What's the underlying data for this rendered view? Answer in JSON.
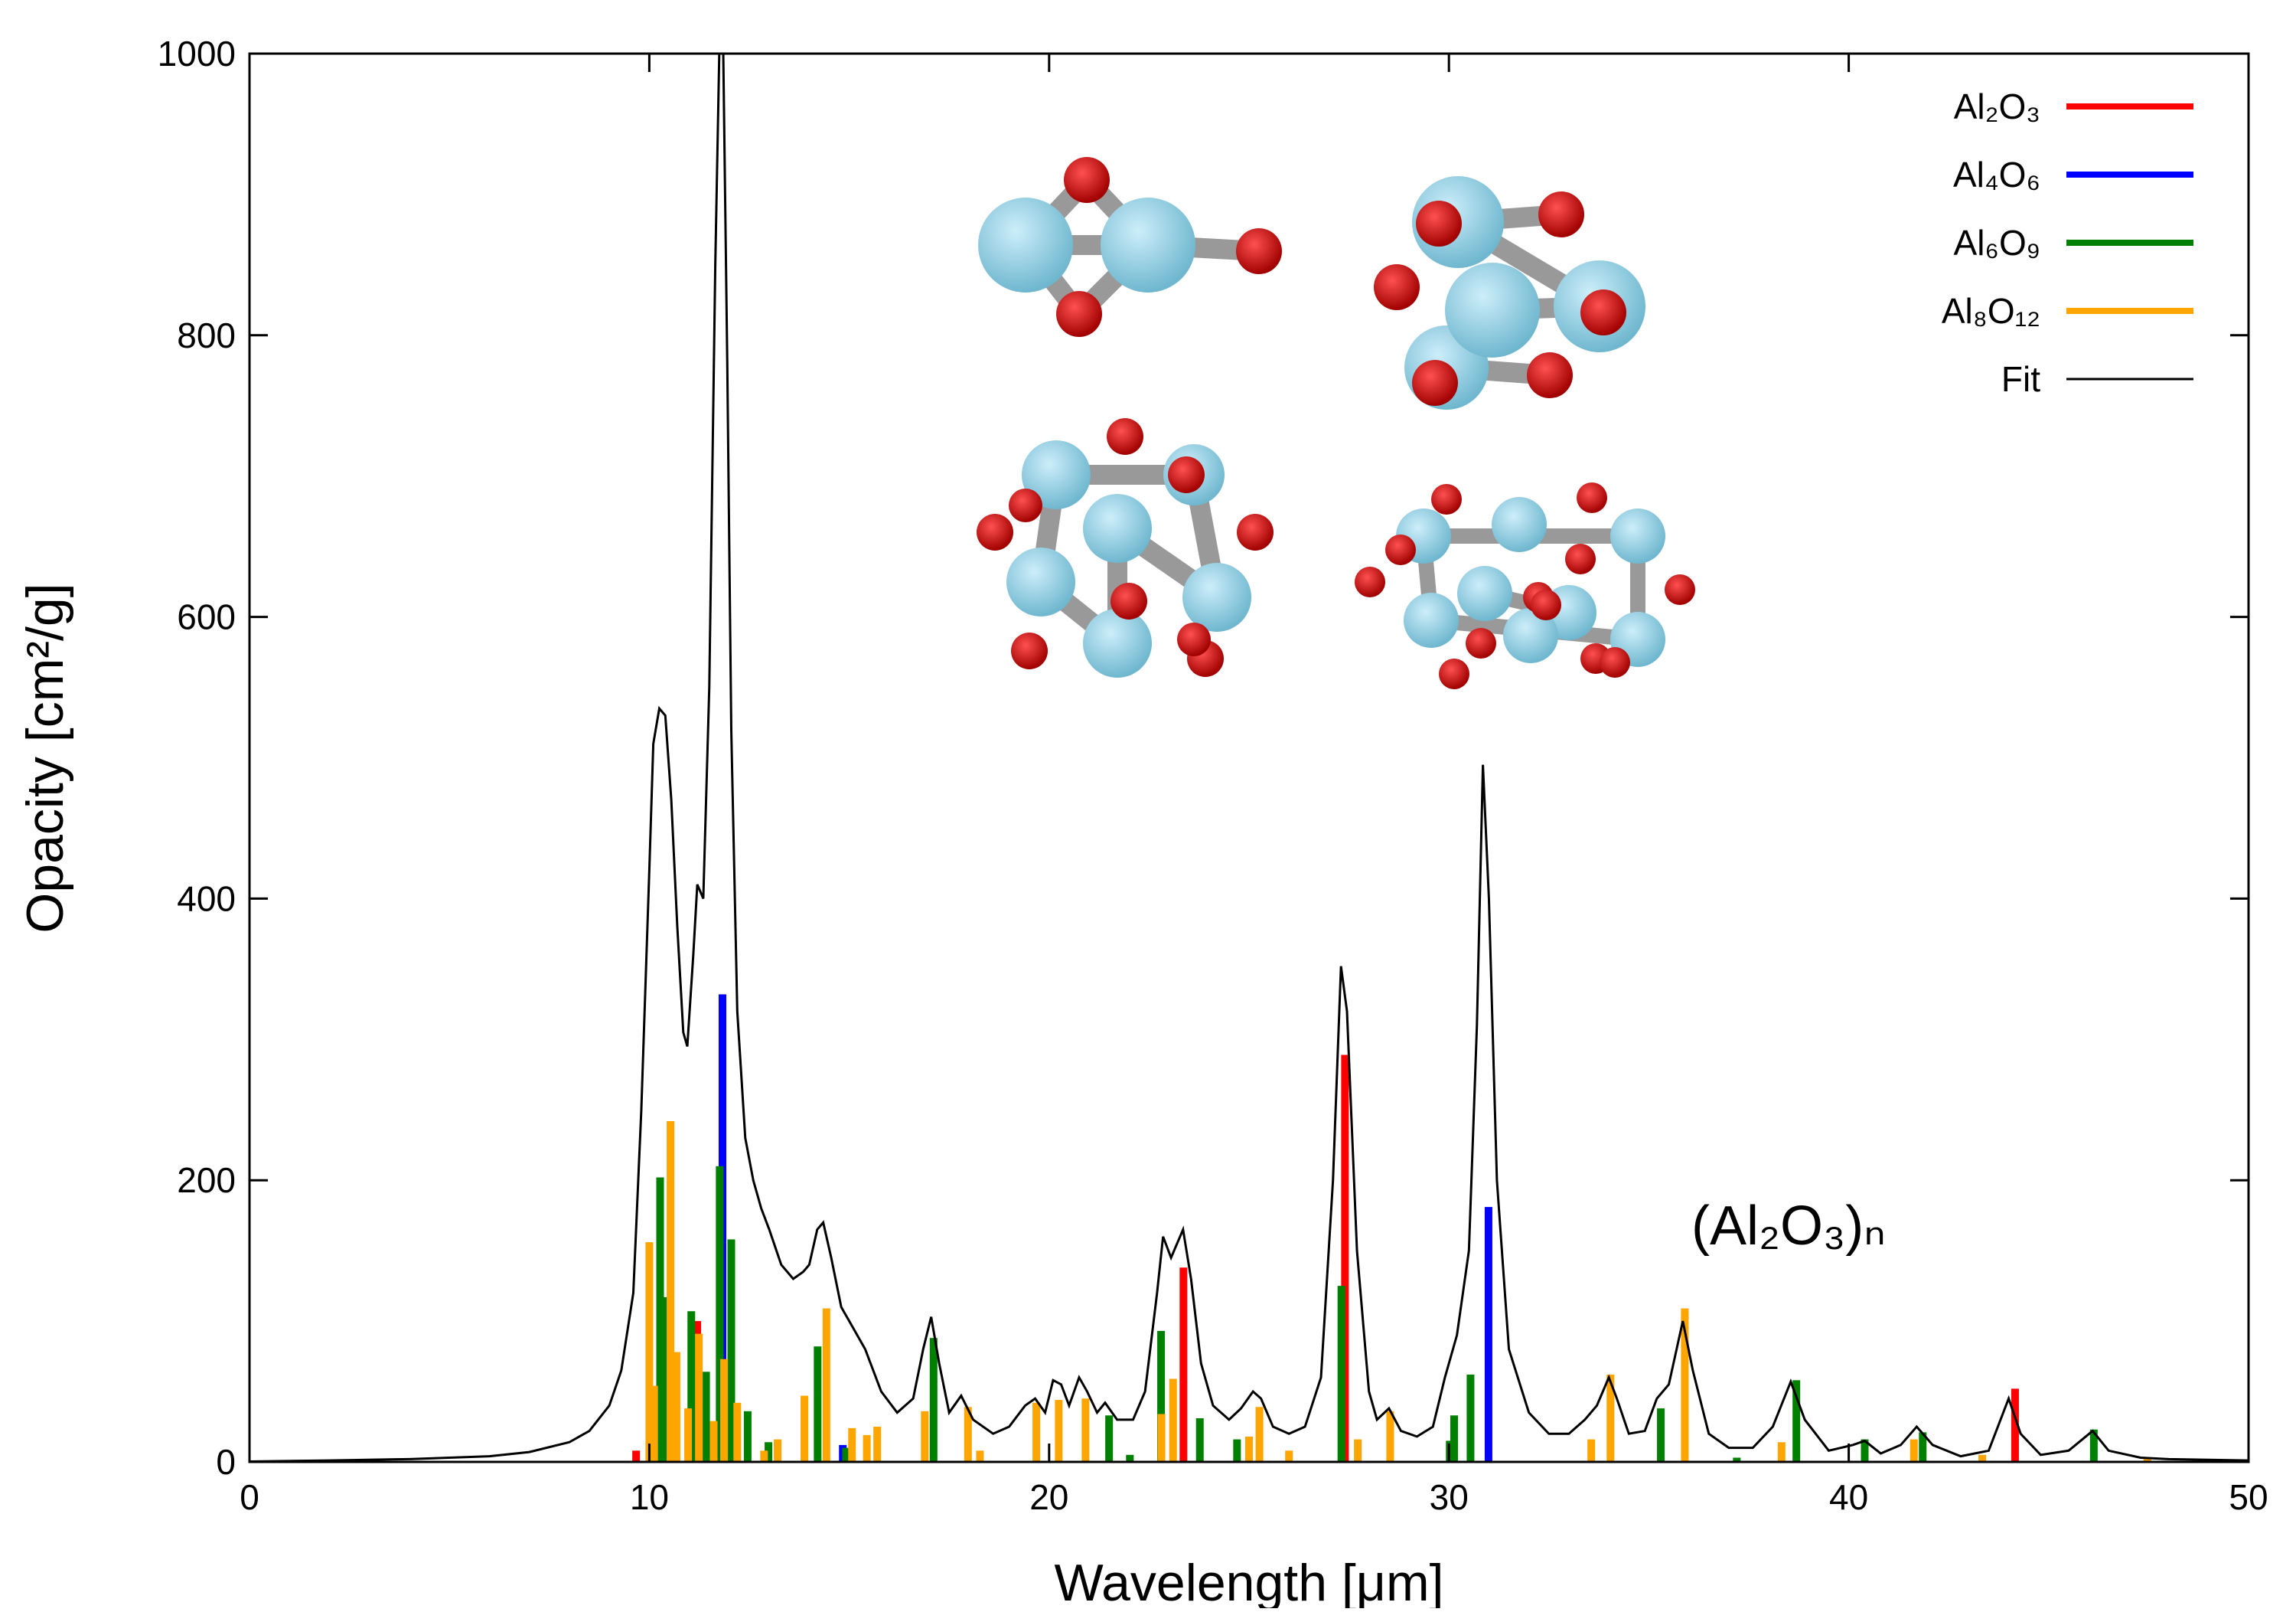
{
  "chart_data": {
    "type": "bar",
    "x_label": "Wavelength [μm]",
    "y_label": "Opacity [cm²/g]",
    "annotation": "(Al₂O₃)ₙ",
    "xlim": [
      0,
      50
    ],
    "xticks": [
      0,
      10,
      20,
      30,
      40,
      50
    ],
    "ylim": [
      0,
      1000
    ],
    "yticks": [
      0,
      200,
      400,
      600,
      800,
      1000
    ],
    "legend": "top-right",
    "series": [
      {
        "name": "Al₂O₃",
        "color": "#ff0000",
        "type": "bar",
        "x": [
          9.67,
          11.2,
          23.36,
          27.4,
          44.16
        ],
        "values": [
          8,
          100,
          138,
          289,
          52
        ]
      },
      {
        "name": "Al₄O₆",
        "color": "#0000ff",
        "type": "bar",
        "x": [
          11.83,
          14.84,
          30.99
        ],
        "values": [
          332,
          12,
          181
        ]
      },
      {
        "name": "Al₆O₉",
        "color": "#008000",
        "type": "bar",
        "x": [
          10.27,
          10.42,
          11.05,
          11.42,
          11.76,
          12.05,
          12.46,
          12.98,
          14.21,
          14.92,
          17.11,
          21.5,
          22.02,
          22.8,
          23.77,
          24.7,
          27.31,
          30.02,
          30.13,
          30.54,
          35.3,
          37.2,
          38.69,
          40.4,
          41.85,
          46.13
        ],
        "values": [
          202,
          117,
          107,
          64,
          210,
          158,
          36,
          14,
          82,
          10,
          88,
          33,
          5,
          93,
          31,
          16,
          125,
          15,
          33,
          62,
          38,
          3,
          58,
          16,
          21,
          23
        ]
      },
      {
        "name": "Al₈O₁₂",
        "color": "#ffa500",
        "type": "bar",
        "x": [
          10.0,
          10.12,
          10.53,
          10.68,
          10.97,
          11.24,
          11.61,
          11.87,
          12.2,
          12.87,
          13.21,
          13.88,
          14.43,
          15.07,
          15.44,
          15.7,
          16.89,
          17.97,
          18.27,
          19.68,
          20.24,
          20.91,
          22.81,
          23.1,
          25.0,
          25.26,
          26.0,
          27.72,
          28.53,
          33.56,
          34.04,
          35.9,
          38.32,
          41.63,
          43.34,
          47.47
        ],
        "values": [
          156,
          54,
          242,
          78,
          38,
          91,
          29,
          73,
          42,
          8,
          16,
          47,
          109,
          24,
          19,
          25,
          36,
          39,
          8,
          42,
          44,
          45,
          34,
          59,
          18,
          39,
          8,
          16,
          36,
          16,
          62,
          109,
          14,
          16,
          5,
          3
        ]
      },
      {
        "name": "Fit",
        "color": "#000000",
        "type": "line",
        "x": [
          0,
          2,
          4,
          6,
          7,
          8,
          8.5,
          9,
          9.3,
          9.6,
          9.8,
          10.0,
          10.1,
          10.25,
          10.4,
          10.55,
          10.7,
          10.85,
          10.95,
          11.1,
          11.2,
          11.35,
          11.5,
          11.65,
          11.75,
          11.85,
          11.95,
          12.05,
          12.2,
          12.4,
          12.6,
          12.8,
          13.0,
          13.3,
          13.6,
          13.85,
          14.0,
          14.2,
          14.35,
          14.55,
          14.8,
          15.1,
          15.4,
          15.8,
          16.2,
          16.6,
          16.85,
          17.05,
          17.25,
          17.5,
          17.8,
          18.1,
          18.6,
          19.0,
          19.4,
          19.65,
          19.9,
          20.1,
          20.3,
          20.5,
          20.75,
          20.95,
          21.2,
          21.4,
          21.7,
          22.1,
          22.4,
          22.7,
          22.85,
          23.05,
          23.35,
          23.55,
          23.8,
          24.1,
          24.5,
          24.8,
          25.1,
          25.3,
          25.6,
          26.0,
          26.4,
          26.8,
          27.1,
          27.3,
          27.45,
          27.7,
          28.0,
          28.2,
          28.5,
          28.8,
          29.2,
          29.6,
          29.9,
          30.2,
          30.5,
          30.7,
          30.85,
          31.0,
          31.2,
          31.5,
          32.0,
          32.5,
          33.0,
          33.4,
          33.7,
          34.0,
          34.2,
          34.5,
          34.9,
          35.2,
          35.5,
          35.85,
          36.1,
          36.5,
          37.0,
          37.6,
          38.1,
          38.55,
          38.9,
          39.5,
          40.1,
          40.4,
          40.8,
          41.3,
          41.7,
          42.1,
          42.8,
          43.5,
          44.0,
          44.3,
          44.8,
          45.5,
          46.1,
          46.5,
          47.3,
          48,
          50
        ],
        "values": [
          0.3,
          1,
          2,
          4,
          7,
          14,
          22,
          40,
          65,
          120,
          250,
          420,
          510,
          535,
          530,
          470,
          380,
          305,
          295,
          360,
          410,
          400,
          550,
          850,
          1000,
          1000,
          780,
          520,
          320,
          230,
          200,
          180,
          165,
          140,
          130,
          135,
          140,
          165,
          170,
          145,
          110,
          95,
          80,
          50,
          35,
          45,
          80,
          103,
          70,
          35,
          47,
          30,
          20,
          25,
          40,
          45,
          35,
          58,
          55,
          40,
          60,
          50,
          35,
          42,
          30,
          30,
          50,
          120,
          160,
          145,
          165,
          130,
          70,
          40,
          30,
          38,
          50,
          45,
          25,
          20,
          25,
          60,
          200,
          352,
          320,
          150,
          50,
          30,
          38,
          22,
          18,
          25,
          60,
          90,
          150,
          310,
          495,
          400,
          200,
          80,
          35,
          20,
          20,
          30,
          40,
          60,
          45,
          20,
          22,
          45,
          55,
          100,
          65,
          20,
          10,
          10,
          25,
          57,
          30,
          8,
          12,
          15,
          6,
          12,
          25,
          12,
          4,
          8,
          45,
          20,
          5,
          8,
          22,
          8,
          3,
          2,
          1
        ]
      }
    ]
  }
}
